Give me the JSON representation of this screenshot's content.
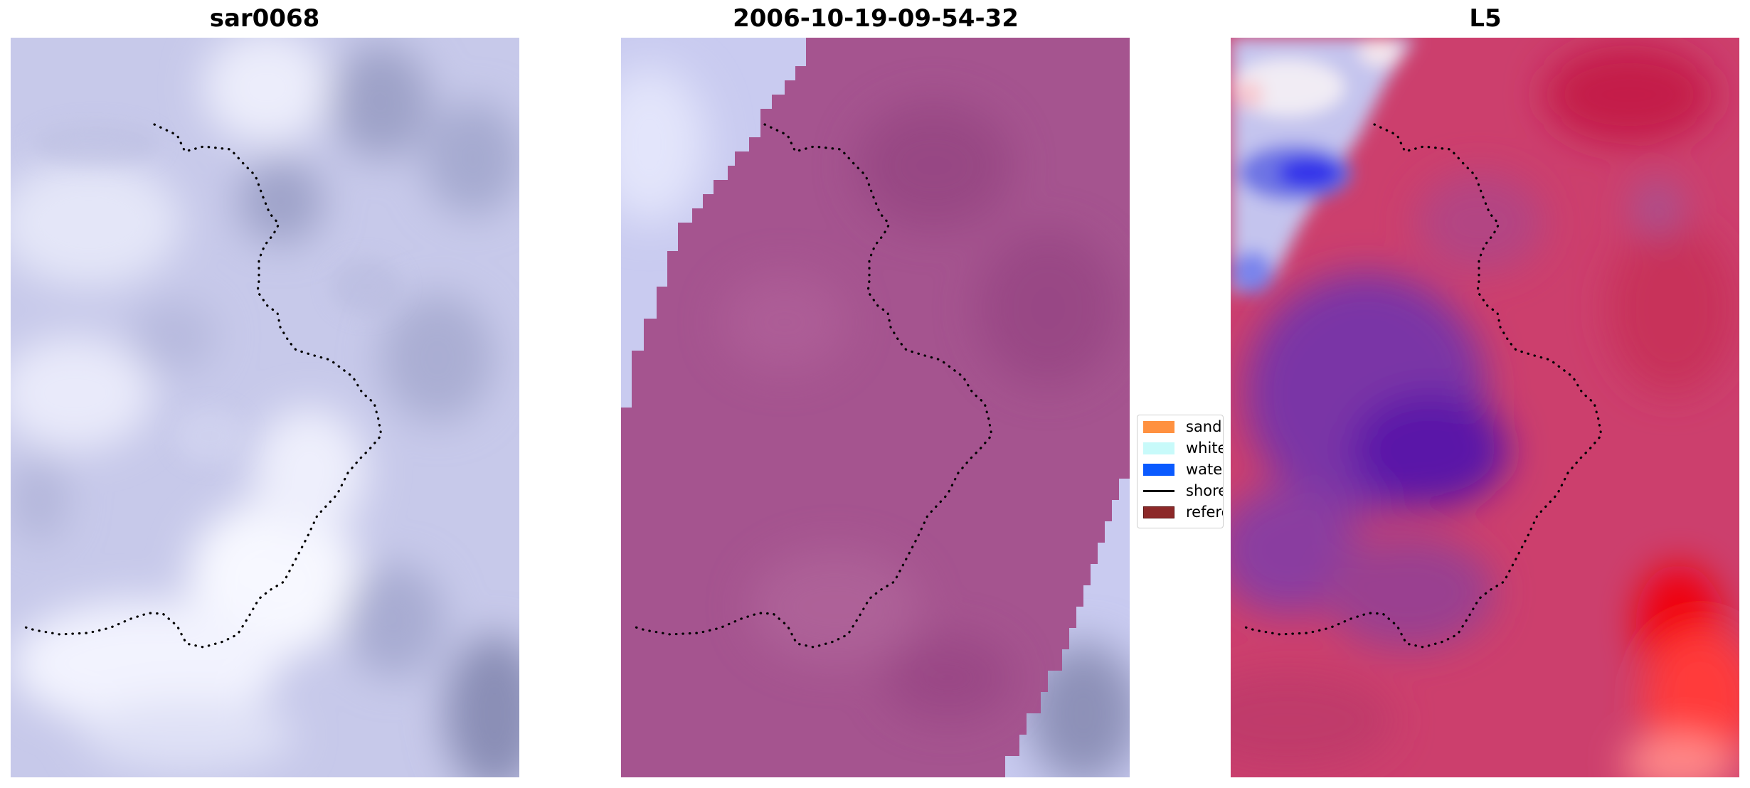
{
  "panels": [
    {
      "title": "sar0068"
    },
    {
      "title": "2006-10-19-09-54-32"
    },
    {
      "title": "L5"
    }
  ],
  "legend": {
    "items": [
      {
        "label": "sand",
        "color": "#ff9140"
      },
      {
        "label": "whitewater",
        "color": "#c8fafa"
      },
      {
        "label": "water",
        "color": "#0a5aff"
      },
      {
        "label": "shoreline",
        "color": "#000000",
        "style": "line"
      },
      {
        "label": "reference",
        "color": "#8c2828",
        "edge": "#5a1010"
      }
    ]
  }
}
